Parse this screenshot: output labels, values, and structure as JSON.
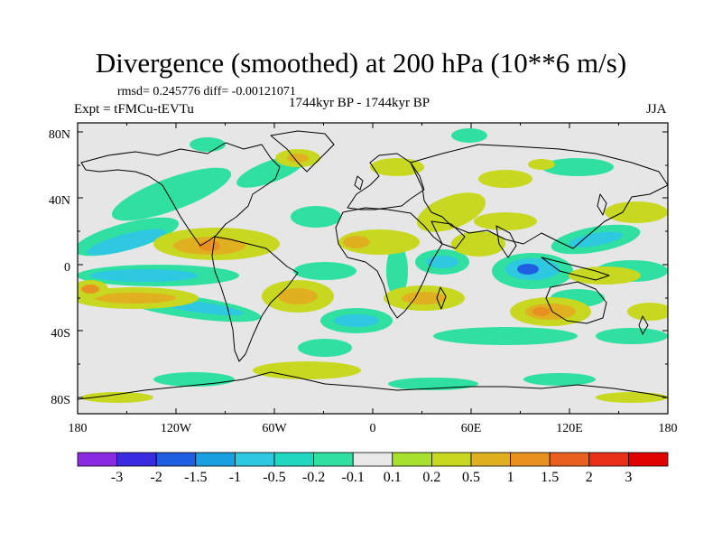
{
  "title": "Divergence (smoothed) at 200 hPa (10**6 m/s)",
  "stats": "rmsd= 0.245776  diff= -0.00121071",
  "experiment": "Expt = tFMCu-tEVTu",
  "period": "1744kyr BP - 1744kyr BP",
  "season": "JJA",
  "y_axis_labels": [
    "80N",
    "40N",
    "0",
    "40S",
    "80S"
  ],
  "x_axis_labels": [
    "180",
    "120W",
    "60W",
    "0",
    "60E",
    "120E",
    "180"
  ],
  "colorbar": {
    "labels": [
      "-3",
      "-2",
      "-1.5",
      "-1",
      "-0.5",
      "-0.2",
      "-0.1",
      "0.1",
      "0.2",
      "0.5",
      "1",
      "1.5",
      "2",
      "3"
    ],
    "colors": [
      "#8a2be2",
      "#3a2be0",
      "#1f5ee0",
      "#1a9fe0",
      "#2ec8e0",
      "#20d8c0",
      "#2fe0a0",
      "#e8e8e8",
      "#a8e030",
      "#c8d820",
      "#e0b020",
      "#e89020",
      "#e86020",
      "#e83018",
      "#e00000"
    ]
  },
  "background_color": "#e6e6e6",
  "coastline_color": "#000000"
}
